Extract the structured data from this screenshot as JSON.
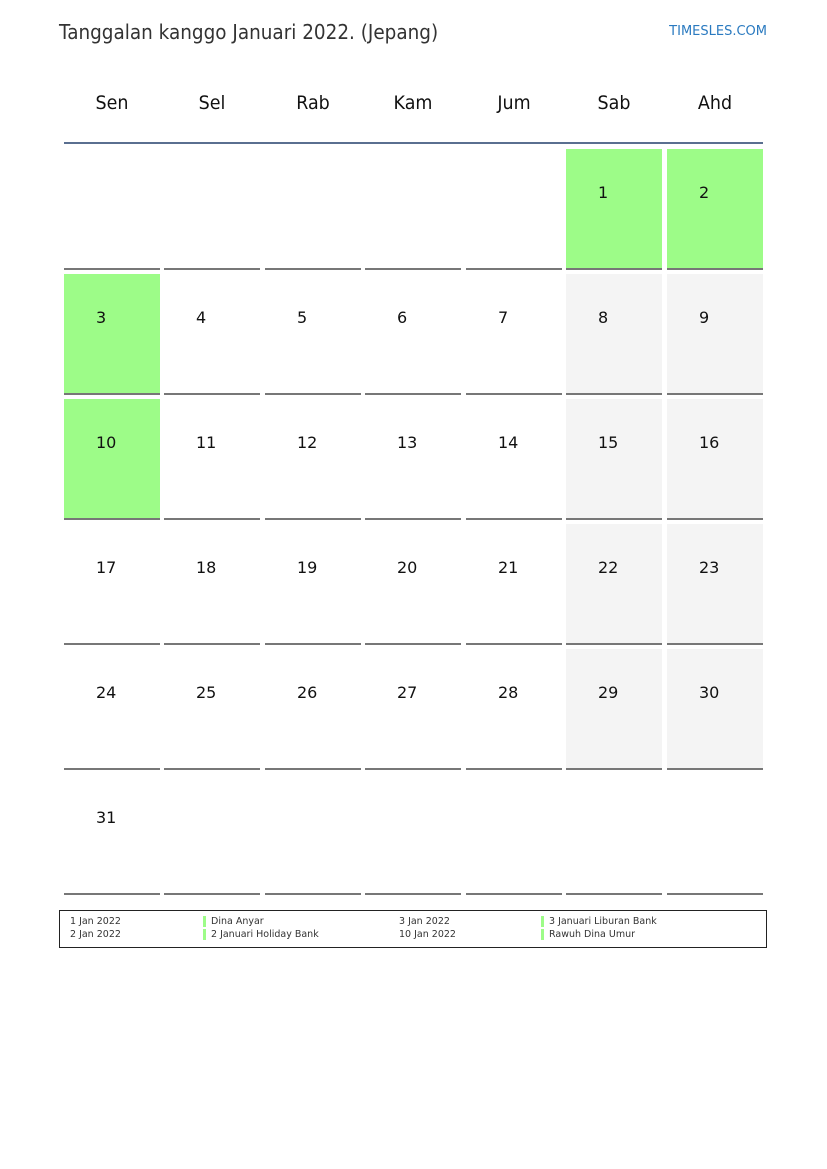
{
  "header": {
    "title": "Tanggalan kanggo Januari 2022. (Jepang)",
    "brand": "TIMESLES.COM"
  },
  "colors": {
    "holiday": "#9dfc88",
    "weekend": "#f4f4f4",
    "rule": "#5a6f90"
  },
  "weekdays": [
    "Sen",
    "Sel",
    "Rab",
    "Kam",
    "Jum",
    "Sab",
    "Ahd"
  ],
  "weeks": [
    [
      null,
      null,
      null,
      null,
      null,
      1,
      2
    ],
    [
      3,
      4,
      5,
      6,
      7,
      8,
      9
    ],
    [
      10,
      11,
      12,
      13,
      14,
      15,
      16
    ],
    [
      17,
      18,
      19,
      20,
      21,
      22,
      23
    ],
    [
      24,
      25,
      26,
      27,
      28,
      29,
      30
    ],
    [
      31,
      null,
      null,
      null,
      null,
      null,
      null
    ]
  ],
  "holidays": [
    1,
    2,
    3,
    10
  ],
  "legend": [
    {
      "date": "1 Jan 2022",
      "name": "Dina Anyar"
    },
    {
      "date": "2 Jan 2022",
      "name": "2 Januari Holiday Bank"
    },
    {
      "date": "3 Jan 2022",
      "name": "3 Januari Liburan Bank"
    },
    {
      "date": "10 Jan 2022",
      "name": "Rawuh Dina Umur"
    }
  ]
}
